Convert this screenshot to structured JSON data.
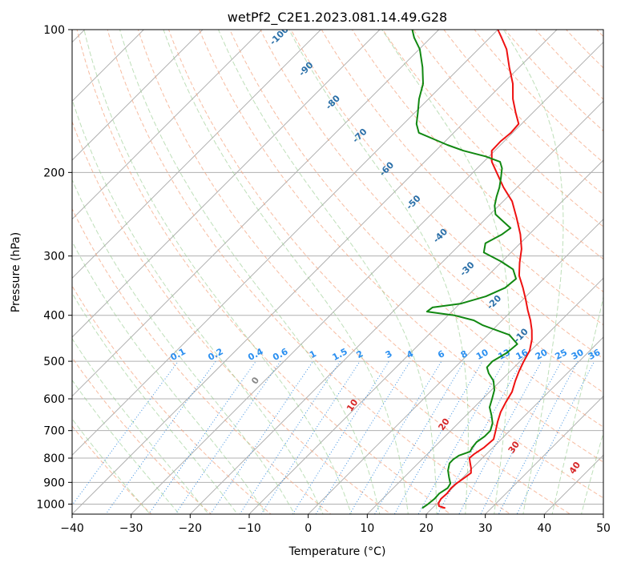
{
  "chart_data": {
    "type": "line",
    "title": "wetPf2_C2E1.2023.081.14.49.G28",
    "xlabel": "Temperature (°C)",
    "ylabel": "Pressure (hPa)",
    "xlim": [
      -40,
      50
    ],
    "ylim": [
      1050,
      100
    ],
    "y_scale": "log",
    "skew": "skew-T log-P diagram",
    "grid": true,
    "x_ticks": [
      -40,
      -30,
      -20,
      -10,
      0,
      10,
      20,
      30,
      40,
      50
    ],
    "x_tick_labels": [
      "−40",
      "−30",
      "−20",
      "−10",
      "0",
      "10",
      "20",
      "30",
      "40",
      "50"
    ],
    "y_ticks": [
      1000,
      900,
      800,
      700,
      600,
      500,
      400,
      300,
      200,
      100
    ],
    "y_tick_labels": [
      "1000",
      "900",
      "800",
      "700",
      "600",
      "500",
      "400",
      "300",
      "200",
      "100"
    ],
    "series": [
      {
        "role": "temperature",
        "color": "#ee1111",
        "points": [
          [
            1020,
            22.2
          ],
          [
            1010,
            20.8
          ],
          [
            995,
            20.2
          ],
          [
            975,
            19.9
          ],
          [
            950,
            20.0
          ],
          [
            925,
            19.8
          ],
          [
            905,
            19.9
          ],
          [
            880,
            20.3
          ],
          [
            860,
            20.6
          ],
          [
            840,
            19.8
          ],
          [
            820,
            18.8
          ],
          [
            800,
            17.8
          ],
          [
            785,
            17.9
          ],
          [
            760,
            18.5
          ],
          [
            730,
            18.7
          ],
          [
            700,
            17.6
          ],
          [
            670,
            16.4
          ],
          [
            640,
            15.3
          ],
          [
            610,
            14.5
          ],
          [
            580,
            13.8
          ],
          [
            550,
            12.5
          ],
          [
            525,
            11.5
          ],
          [
            500,
            10.6
          ],
          [
            475,
            9.8
          ],
          [
            450,
            8.3
          ],
          [
            430,
            6.7
          ],
          [
            410,
            4.8
          ],
          [
            390,
            2.6
          ],
          [
            370,
            0.4
          ],
          [
            350,
            -2.0
          ],
          [
            330,
            -4.7
          ],
          [
            310,
            -6.8
          ],
          [
            290,
            -8.8
          ],
          [
            270,
            -11.5
          ],
          [
            250,
            -14.8
          ],
          [
            230,
            -18.5
          ],
          [
            215,
            -22.3
          ],
          [
            200,
            -26.0
          ],
          [
            190,
            -28.6
          ],
          [
            180,
            -30.5
          ],
          [
            172,
            -30.6
          ],
          [
            165,
            -30.3
          ],
          [
            158,
            -30.5
          ],
          [
            150,
            -32.8
          ],
          [
            140,
            -35.7
          ],
          [
            130,
            -38.3
          ],
          [
            120,
            -41.7
          ],
          [
            110,
            -45.2
          ],
          [
            104,
            -48.0
          ],
          [
            100,
            -50.0
          ]
        ]
      },
      {
        "role": "dewpoint",
        "color": "#118811",
        "points": [
          [
            1020,
            18.3
          ],
          [
            1000,
            18.6
          ],
          [
            975,
            18.8
          ],
          [
            950,
            18.7
          ],
          [
            925,
            19.2
          ],
          [
            905,
            18.9
          ],
          [
            880,
            17.7
          ],
          [
            850,
            16.3
          ],
          [
            820,
            15.3
          ],
          [
            805,
            15.3
          ],
          [
            790,
            15.6
          ],
          [
            775,
            16.8
          ],
          [
            760,
            16.5
          ],
          [
            740,
            16.3
          ],
          [
            720,
            16.7
          ],
          [
            700,
            16.7
          ],
          [
            675,
            15.8
          ],
          [
            650,
            14.3
          ],
          [
            625,
            12.6
          ],
          [
            600,
            11.6
          ],
          [
            575,
            10.5
          ],
          [
            550,
            8.8
          ],
          [
            530,
            6.7
          ],
          [
            515,
            5.4
          ],
          [
            500,
            5.3
          ],
          [
            480,
            6.3
          ],
          [
            460,
            6.6
          ],
          [
            440,
            3.7
          ],
          [
            420,
            -2.4
          ],
          [
            410,
            -4.8
          ],
          [
            400,
            -9.0
          ],
          [
            393,
            -14.2
          ],
          [
            385,
            -14.0
          ],
          [
            378,
            -9.8
          ],
          [
            365,
            -6.8
          ],
          [
            350,
            -5.0
          ],
          [
            335,
            -4.7
          ],
          [
            320,
            -6.8
          ],
          [
            308,
            -10.2
          ],
          [
            295,
            -14.6
          ],
          [
            282,
            -15.9
          ],
          [
            270,
            -14.6
          ],
          [
            262,
            -14.2
          ],
          [
            255,
            -16.2
          ],
          [
            245,
            -19.1
          ],
          [
            235,
            -20.7
          ],
          [
            225,
            -21.9
          ],
          [
            215,
            -23.0
          ],
          [
            205,
            -24.4
          ],
          [
            196,
            -25.8
          ],
          [
            190,
            -27.2
          ],
          [
            185,
            -30.6
          ],
          [
            180,
            -35.3
          ],
          [
            175,
            -39.0
          ],
          [
            170,
            -42.4
          ],
          [
            165,
            -45.9
          ],
          [
            158,
            -47.8
          ],
          [
            150,
            -49.4
          ],
          [
            140,
            -51.6
          ],
          [
            130,
            -53.5
          ],
          [
            120,
            -56.4
          ],
          [
            110,
            -59.9
          ],
          [
            104,
            -62.8
          ],
          [
            100,
            -64.5
          ]
        ]
      }
    ],
    "mixing_ratio_labels": [
      "0.1",
      "0.2",
      "0.4",
      "0.6",
      "1",
      "1.5",
      "2",
      "3",
      "4",
      "6",
      "8",
      "10",
      "13",
      "16",
      "20",
      "25",
      "30",
      "36"
    ],
    "mixing_ratio_values": [
      0.1,
      0.2,
      0.4,
      0.6,
      1,
      1.5,
      2,
      3,
      4,
      6,
      8,
      10,
      13,
      16,
      20,
      25,
      30,
      36
    ],
    "dry_adiabat_labels": [
      "-100",
      "-90",
      "-80",
      "-70",
      "-60",
      "-50",
      "-40",
      "-30",
      "-20",
      "-10"
    ],
    "dry_adiabat_values_c": [
      -100,
      -90,
      -80,
      -70,
      -60,
      -50,
      -40,
      -30,
      -20,
      -10
    ],
    "moist_adiabat_labels": [
      "0",
      "10",
      "20",
      "30",
      "40"
    ],
    "moist_adiabat_values_c": [
      0,
      10,
      20,
      30,
      40
    ],
    "colors": {
      "grid": "#b0b0b0",
      "dry_adiabat": "#f4a582",
      "moist_adiabat": "#92c98a",
      "mixing_ratio": "#3b8fe0",
      "dry_label": "#2a6fa8",
      "mixing_label": "#2a8ff0",
      "moist_label": "#d62728",
      "zero_label": "#888888",
      "tan_adiabat": "#d2b48c"
    }
  }
}
